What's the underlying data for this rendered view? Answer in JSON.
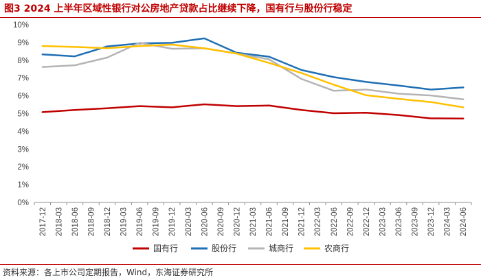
{
  "figure": {
    "title": "图3  2024 上半年区域性银行对公房地产贷款占比继续下降，国有行与股份行稳定",
    "source": "资料来源：各上市公司定期报告，Wind，东海证券研究所"
  },
  "chart_data": {
    "type": "line",
    "categories": [
      "2017-12",
      "2018-03",
      "2018-06",
      "2018-09",
      "2018-12",
      "2019-03",
      "2019-06",
      "2019-09",
      "2019-12",
      "2020-03",
      "2020-06",
      "2020-09",
      "2020-12",
      "2021-03",
      "2021-06",
      "2021-09",
      "2021-12",
      "2022-03",
      "2022-06",
      "2022-09",
      "2022-12",
      "2023-03",
      "2023-06",
      "2023-09",
      "2023-12",
      "2024-03",
      "2024-06"
    ],
    "ylim": [
      0,
      10
    ],
    "yticks": [
      "0%",
      "1%",
      "2%",
      "3%",
      "4%",
      "5%",
      "6%",
      "7%",
      "8%",
      "9%",
      "10%"
    ],
    "grid": false,
    "legend_position": "bottom",
    "series": [
      {
        "name": "国有行",
        "color": "#c00000",
        "points": [
          [
            0,
            5.08
          ],
          [
            2,
            5.2
          ],
          [
            4,
            5.3
          ],
          [
            6,
            5.42
          ],
          [
            8,
            5.35
          ],
          [
            10,
            5.52
          ],
          [
            12,
            5.42
          ],
          [
            14,
            5.45
          ],
          [
            16,
            5.2
          ],
          [
            18,
            5.02
          ],
          [
            20,
            5.05
          ],
          [
            22,
            4.92
          ],
          [
            24,
            4.73
          ],
          [
            26,
            4.72
          ]
        ]
      },
      {
        "name": "股份行",
        "color": "#1f6fb5",
        "points": [
          [
            0,
            8.33
          ],
          [
            2,
            8.22
          ],
          [
            4,
            8.78
          ],
          [
            6,
            8.95
          ],
          [
            8,
            8.98
          ],
          [
            10,
            9.23
          ],
          [
            12,
            8.42
          ],
          [
            14,
            8.2
          ],
          [
            16,
            7.45
          ],
          [
            18,
            7.05
          ],
          [
            20,
            6.78
          ],
          [
            22,
            6.58
          ],
          [
            24,
            6.35
          ],
          [
            26,
            6.47
          ]
        ]
      },
      {
        "name": "城商行",
        "color": "#b4b4b4",
        "points": [
          [
            0,
            7.62
          ],
          [
            2,
            7.72
          ],
          [
            4,
            8.15
          ],
          [
            6,
            8.98
          ],
          [
            8,
            8.65
          ],
          [
            10,
            8.67
          ],
          [
            12,
            8.38
          ],
          [
            14,
            8.05
          ],
          [
            16,
            6.95
          ],
          [
            18,
            6.28
          ],
          [
            20,
            6.35
          ],
          [
            22,
            6.12
          ],
          [
            24,
            6.02
          ],
          [
            26,
            5.8
          ]
        ]
      },
      {
        "name": "农商行",
        "color": "#ffc000",
        "points": [
          [
            0,
            8.8
          ],
          [
            2,
            8.75
          ],
          [
            4,
            8.68
          ],
          [
            6,
            8.8
          ],
          [
            8,
            8.88
          ],
          [
            10,
            8.67
          ],
          [
            12,
            8.38
          ],
          [
            14,
            7.85
          ],
          [
            16,
            7.28
          ],
          [
            18,
            6.62
          ],
          [
            20,
            6.03
          ],
          [
            22,
            5.83
          ],
          [
            24,
            5.65
          ],
          [
            26,
            5.35
          ]
        ]
      }
    ]
  }
}
